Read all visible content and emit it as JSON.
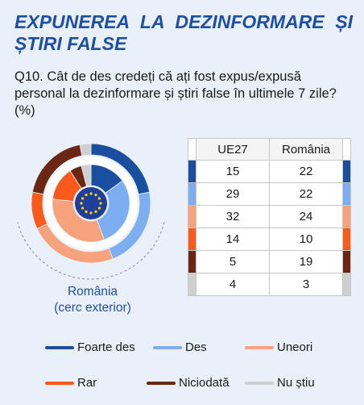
{
  "title": "EXPUNEREA LA DEZINFORMARE ȘI ȘTIRI FALSE",
  "question": "Q10. Cât de des credeți că ați fost expus/expusă personal la dezinformare și știri false în ultimele 7 zile? (%)",
  "caption": {
    "line1": "România",
    "line2": "(cerc exterior)"
  },
  "chart_data": {
    "type": "table",
    "columns": [
      "UE27",
      "România"
    ],
    "categories": [
      "Foarte des",
      "Des",
      "Uneori",
      "Rar",
      "Niciodată",
      "Nu știu"
    ],
    "colors": [
      "#1a4fa0",
      "#7eaef2",
      "#f6a27c",
      "#fb5a1c",
      "#6b2713",
      "#cfcfcf"
    ],
    "series": [
      {
        "name": "UE27",
        "values": [
          15,
          29,
          32,
          14,
          5,
          4
        ]
      },
      {
        "name": "România",
        "values": [
          22,
          22,
          24,
          10,
          19,
          3
        ]
      }
    ],
    "inner_ring": "UE27",
    "outer_ring": "România",
    "center_icon": "eu-flag-icon"
  }
}
